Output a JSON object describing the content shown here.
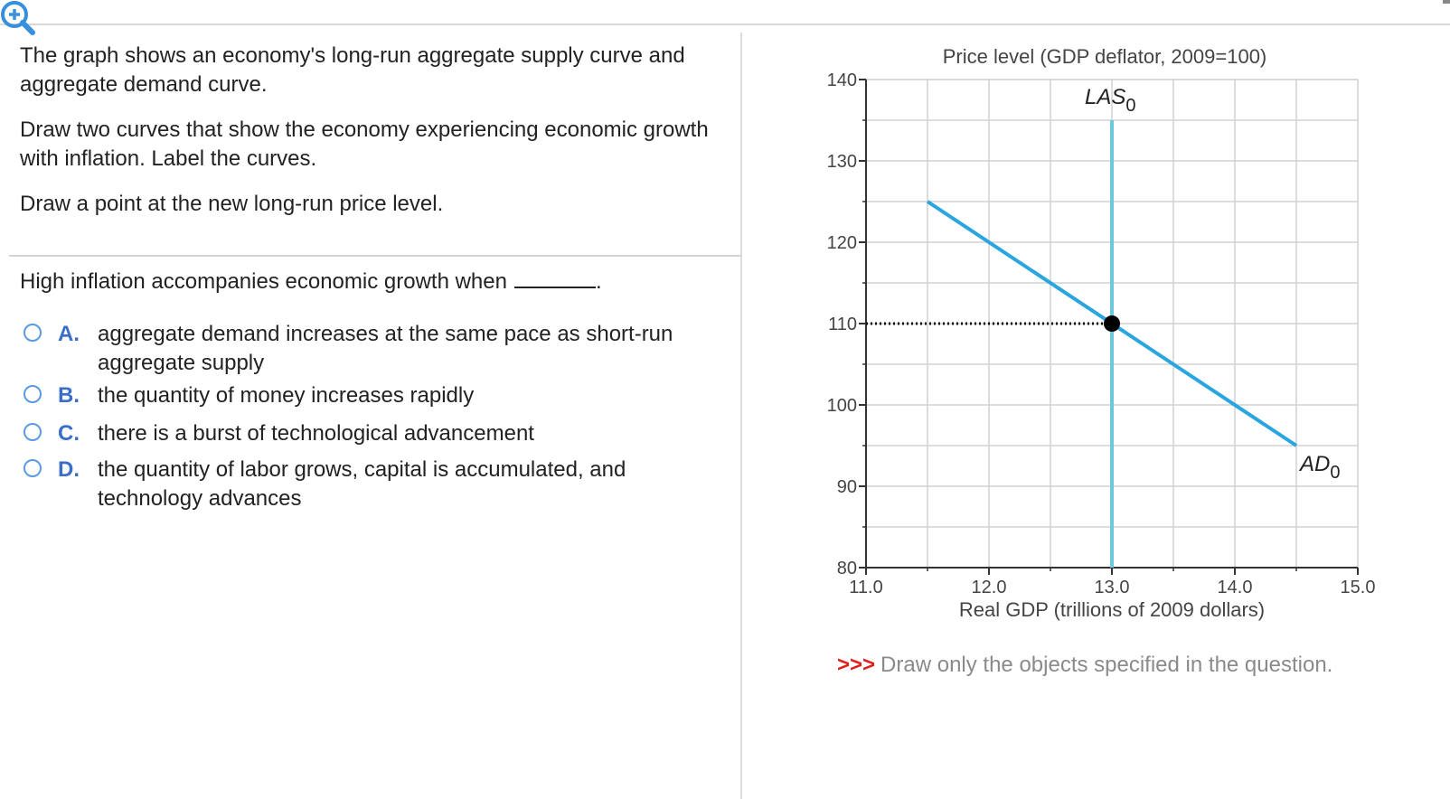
{
  "instructions": {
    "line1": "The graph shows an economy's long-run aggregate supply curve and aggregate demand curve.",
    "line2": "Draw two curves that show the economy experiencing economic growth with inflation. Label the curves.",
    "line3": "Draw a point at the new long-run price level."
  },
  "question": {
    "text": "High inflation accompanies economic growth when",
    "blank_suffix": "."
  },
  "options": [
    {
      "letter": "A.",
      "text": "aggregate demand increases at the same pace as short-run aggregate supply"
    },
    {
      "letter": "B.",
      "text": "the quantity of money increases rapidly"
    },
    {
      "letter": "C.",
      "text": "there is a burst of technological advancement"
    },
    {
      "letter": "D.",
      "text": "the quantity of labor grows, capital is accumulated, and technology advances"
    }
  ],
  "note": {
    "arrows": ">>>",
    "text": "Draw only the objects specified in the question."
  },
  "colors": {
    "las": "#6cc9dc",
    "ad": "#2aa5e0",
    "point": "#000000",
    "zoom": "#3a8fdc",
    "grid": "#d2d2d2"
  },
  "icons": {
    "zoom": "zoom-in-icon"
  },
  "chart_data": {
    "type": "line",
    "title": "Price level (GDP deflator, 2009=100)",
    "xlabel": "Real GDP (trillions of 2009 dollars)",
    "ylabel": "Price level (GDP deflator, 2009=100)",
    "xlim": [
      11.0,
      15.0
    ],
    "ylim": [
      80,
      140
    ],
    "x_ticks": [
      "11.0",
      "12.0",
      "13.0",
      "14.0",
      "15.0"
    ],
    "y_ticks": [
      "80",
      "90",
      "100",
      "110",
      "120",
      "130",
      "140"
    ],
    "grid": true,
    "series": [
      {
        "name": "LAS",
        "subscript": "0",
        "points": [
          [
            13.0,
            80
          ],
          [
            13.0,
            135
          ]
        ]
      },
      {
        "name": "AD",
        "subscript": "0",
        "points": [
          [
            11.5,
            125
          ],
          [
            14.5,
            95
          ]
        ]
      }
    ],
    "points": [
      {
        "x": 13.0,
        "y": 110
      }
    ],
    "guides": [
      {
        "from": [
          11.0,
          110
        ],
        "to": [
          13.0,
          110
        ]
      }
    ]
  }
}
